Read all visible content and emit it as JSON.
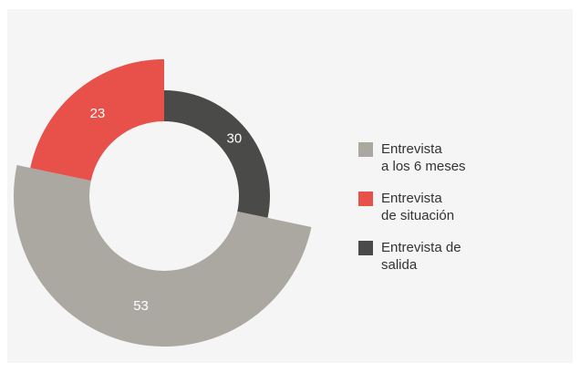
{
  "chart_data": {
    "type": "donut",
    "categories": [
      [
        "Entrevista",
        "a los 6 meses"
      ],
      [
        "Entrevista",
        "de situación"
      ],
      [
        "Entrevista de",
        "salida"
      ]
    ],
    "values": [
      53,
      23,
      30
    ],
    "colors": [
      "#aba7a1",
      "#e8504a",
      "#4a4a48"
    ],
    "legend": "right"
  }
}
